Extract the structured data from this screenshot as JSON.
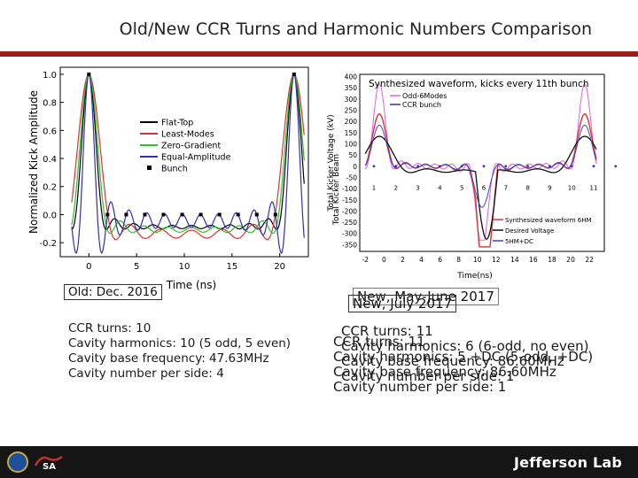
{
  "title": "Old/New CCR Turns and Harmonic Numbers Comparison",
  "footer": {
    "brand": "Jefferson Lab",
    "seal_icon": "doe-seal-icon",
    "jsa_logo": "jsa-logo"
  },
  "old_label": "Old: Dec. 2016",
  "old_lines": [
    "CCR turns: 10",
    "Cavity harmonics: 10 (5 odd, 5 even)",
    "Cavity base frequency: 47.63MHz",
    "Cavity number per side: 4"
  ],
  "new_label_a": "New, May-June 2017",
  "new_label_b": "New, July 2017",
  "new_lines_a": [
    "CCR turns: 11",
    "Cavity harmonics: 6 (6-odd, no even)",
    "Cavity base frequency: 86.60MHz",
    "Cavity number per side: 1"
  ],
  "new_lines_b": [
    "CCR turns: 11",
    "Cavity harmonics: 5 +DC (5-odd, +DC)",
    "Cavity base frequency: 86.60MHz",
    "Cavity number per side: 1"
  ],
  "chart_data": [
    {
      "type": "line",
      "title": "",
      "xlabel": "Time (ns)",
      "ylabel": "Normalized Kick Amplitude",
      "xlim": [
        -3,
        23
      ],
      "ylim": [
        -0.3,
        1.05
      ],
      "xticks": [
        "0",
        "5",
        "10",
        "15",
        "20"
      ],
      "yticks": [
        "1.0",
        "0.8",
        "0.6",
        "0.4",
        "0.2",
        "0.0",
        "-0.2"
      ],
      "series": [
        {
          "name": "Flat-Top",
          "color": "#000000"
        },
        {
          "name": "Least-Modes",
          "color": "#e03030"
        },
        {
          "name": "Zero-Gradient",
          "color": "#2fbf2f"
        },
        {
          "name": "Equal-Amplitude",
          "color": "#3030b0"
        },
        {
          "name": "Bunch",
          "color": "#000000"
        }
      ],
      "legend": "right",
      "grid": false
    },
    {
      "type": "line",
      "title": "Synthesized waveform, kicks every 11th bunch",
      "xlabel": "Time(ns)",
      "ylabel": "Total Kicker Voltage (kV)",
      "ylabel_overlay": "Total Kicker Beam",
      "xticks": [
        "-2",
        "0",
        "2",
        "4",
        "6",
        "8",
        "10",
        "12",
        "14",
        "16",
        "18",
        "20",
        "22"
      ],
      "xticks_overlay": [
        "1",
        "2",
        "3",
        "4",
        "5",
        "6",
        "7",
        "8",
        "9",
        "10",
        "11"
      ],
      "yticks": [
        "400",
        "350",
        "300",
        "250",
        "200",
        "150",
        "100",
        "50",
        "0",
        "-50",
        "-100",
        "-150",
        "-200",
        "-250",
        "-300",
        "-350"
      ],
      "series": [
        {
          "name": "Odd-6Modes",
          "color": "#e060e0"
        },
        {
          "name": "CCR bunch",
          "color": "#3030c0"
        },
        {
          "name": "Synthesized waveform 6HM",
          "color": "#e03030"
        },
        {
          "name": "Desired Voltage",
          "color": "#111111"
        },
        {
          "name": "5HM+DC",
          "color": "#4040d0"
        }
      ],
      "legend": "inside"
    }
  ]
}
